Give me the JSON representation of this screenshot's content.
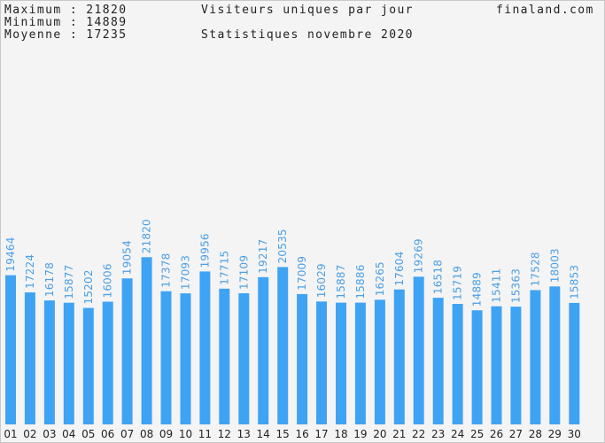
{
  "header": {
    "max_label": "Maximum",
    "max_value": "21820",
    "min_label": "Minimum",
    "min_value": "14889",
    "avg_label": "Moyenne",
    "avg_value": "17235",
    "title": "Visiteurs uniques par jour",
    "subtitle": "Statistiques novembre 2020",
    "site": "finaland.com"
  },
  "colors": {
    "bar": "#3fa3f4",
    "label": "#4a9fe6",
    "background": "#f4f4f4"
  },
  "chart_data": {
    "type": "bar",
    "title": "Visiteurs uniques par jour",
    "subtitle": "Statistiques novembre 2020",
    "categories": [
      "01",
      "02",
      "03",
      "04",
      "05",
      "06",
      "07",
      "08",
      "09",
      "10",
      "11",
      "12",
      "13",
      "14",
      "15",
      "16",
      "17",
      "18",
      "19",
      "20",
      "21",
      "22",
      "23",
      "24",
      "25",
      "26",
      "27",
      "28",
      "29",
      "30"
    ],
    "values": [
      19464,
      17224,
      16178,
      15877,
      15202,
      16006,
      19054,
      21820,
      17378,
      17093,
      19956,
      17715,
      17109,
      19217,
      20535,
      17009,
      16029,
      15887,
      15886,
      16265,
      17604,
      19269,
      16518,
      15719,
      14889,
      15411,
      15363,
      17528,
      18003,
      15853
    ],
    "ylim": [
      0,
      40000
    ],
    "grid": false,
    "legend": "none"
  }
}
